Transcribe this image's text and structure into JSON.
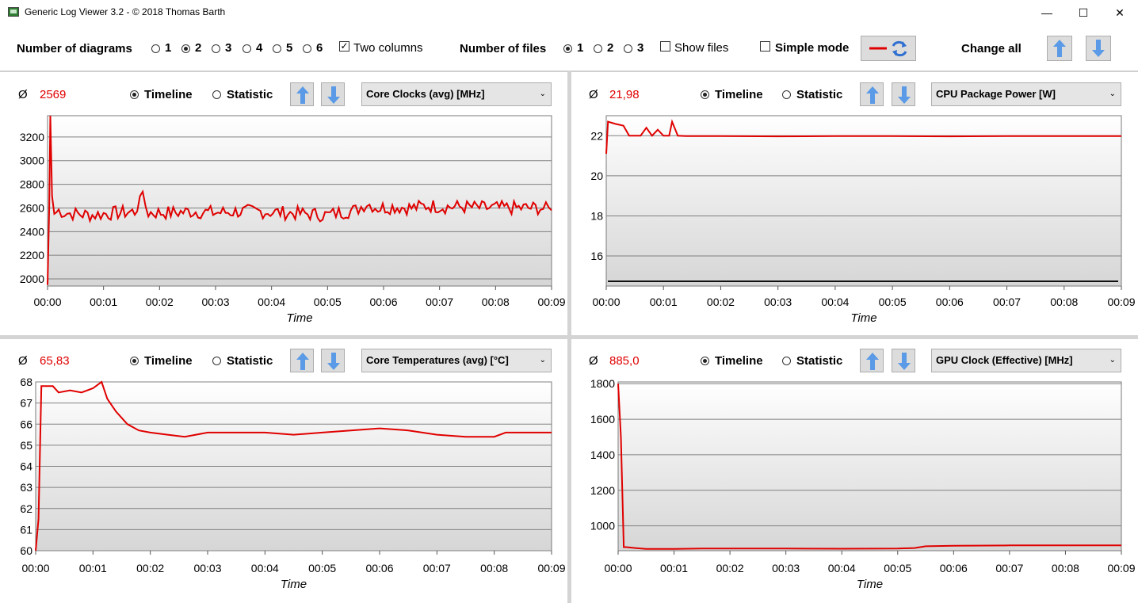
{
  "window": {
    "title": "Generic Log Viewer 3.2 - © 2018 Thomas Barth",
    "min": "—",
    "max": "☐",
    "close": "✕"
  },
  "toolbar": {
    "num_diagrams_label": "Number of diagrams",
    "diagram_options": [
      "1",
      "2",
      "3",
      "4",
      "5",
      "6"
    ],
    "diagram_selected": "2",
    "two_columns_label": "Two columns",
    "two_columns_checked": true,
    "num_files_label": "Number of files",
    "file_options": [
      "1",
      "2",
      "3"
    ],
    "file_selected": "1",
    "show_files_label": "Show files",
    "simple_mode_label": "Simple mode",
    "change_all_label": "Change all"
  },
  "panels": [
    {
      "avg_symbol": "Ø",
      "avg_value": "2569",
      "timeline_label": "Timeline",
      "statistic_label": "Statistic",
      "metric": "Core Clocks (avg) [MHz]"
    },
    {
      "avg_symbol": "Ø",
      "avg_value": "21,98",
      "timeline_label": "Timeline",
      "statistic_label": "Statistic",
      "metric": "CPU Package Power [W]"
    },
    {
      "avg_symbol": "Ø",
      "avg_value": "65,83",
      "timeline_label": "Timeline",
      "statistic_label": "Statistic",
      "metric": "Core Temperatures (avg) [°C]"
    },
    {
      "avg_symbol": "Ø",
      "avg_value": "885,0",
      "timeline_label": "Timeline",
      "statistic_label": "Statistic",
      "metric": "GPU Clock (Effective) [MHz]"
    }
  ],
  "colors": {
    "series": "#e00000",
    "accent": "#3c7fd6"
  },
  "chart_data": [
    {
      "type": "line",
      "xlabel": "Time",
      "x_ticks": [
        "00:00",
        "00:01",
        "00:02",
        "00:03",
        "00:04",
        "00:05",
        "00:06",
        "00:07",
        "00:08",
        "00:09"
      ],
      "xlim": [
        0,
        9
      ],
      "ylim": [
        1940,
        3380
      ],
      "y_ticks": [
        2000,
        2200,
        2400,
        2600,
        2800,
        3000,
        3200
      ],
      "grid": true,
      "series": [
        {
          "x": [
            0,
            0.03,
            0.05,
            0.08,
            0.12,
            0.2,
            0.3,
            0.5,
            0.8,
            1.0,
            1.3,
            1.6,
            1.65,
            1.8,
            2.2,
            2.6,
            3.0,
            3.4,
            3.8,
            4.2,
            4.6,
            5.0,
            5.2,
            5.5,
            5.7,
            5.9,
            6.2,
            6.5,
            6.8,
            7.1,
            7.4,
            7.8,
            8.2,
            8.5,
            8.8,
            9.0
          ],
          "y": [
            1950,
            2600,
            3380,
            2700,
            2550,
            2580,
            2560,
            2550,
            2540,
            2550,
            2560,
            2570,
            2740,
            2560,
            2560,
            2570,
            2560,
            2570,
            2570,
            2560,
            2550,
            2540,
            2560,
            2580,
            2640,
            2600,
            2610,
            2600,
            2620,
            2610,
            2610,
            2600,
            2600,
            2600,
            2600,
            2580
          ]
        }
      ]
    },
    {
      "type": "line",
      "xlabel": "Time",
      "x_ticks": [
        "00:00",
        "00:01",
        "00:02",
        "00:03",
        "00:04",
        "00:05",
        "00:06",
        "00:07",
        "00:08",
        "00:09"
      ],
      "xlim": [
        0,
        9
      ],
      "ylim": [
        14.5,
        23.0
      ],
      "y_ticks": [
        16,
        18,
        20,
        22
      ],
      "grid": true,
      "series": [
        {
          "x": [
            0,
            0.03,
            0.15,
            0.3,
            0.4,
            0.5,
            0.6,
            0.7,
            0.8,
            0.9,
            1.0,
            1.1,
            1.15,
            1.25,
            1.4,
            2,
            3,
            4,
            5,
            6,
            7,
            8,
            9
          ],
          "y": [
            21.1,
            22.7,
            22.6,
            22.5,
            22.0,
            22.0,
            22.0,
            22.4,
            22.0,
            22.3,
            22.0,
            22.0,
            22.7,
            22.0,
            21.98,
            21.98,
            21.97,
            21.98,
            21.98,
            21.97,
            21.98,
            21.98,
            21.98
          ]
        }
      ]
    },
    {
      "type": "line",
      "xlabel": "Time",
      "x_ticks": [
        "00:00",
        "00:01",
        "00:02",
        "00:03",
        "00:04",
        "00:05",
        "00:06",
        "00:07",
        "00:08",
        "00:09"
      ],
      "xlim": [
        0,
        9
      ],
      "ylim": [
        60,
        68
      ],
      "y_ticks": [
        60,
        61,
        62,
        63,
        64,
        65,
        66,
        67,
        68
      ],
      "grid": true,
      "series": [
        {
          "x": [
            0,
            0.05,
            0.1,
            0.15,
            0.3,
            0.4,
            0.6,
            0.8,
            1.0,
            1.15,
            1.25,
            1.4,
            1.6,
            1.8,
            2.0,
            2.3,
            2.6,
            3.0,
            3.5,
            4.0,
            4.5,
            5.0,
            5.5,
            6.0,
            6.5,
            7.0,
            7.5,
            8.0,
            8.2,
            9.0
          ],
          "y": [
            60,
            61.5,
            67.8,
            67.8,
            67.8,
            67.5,
            67.6,
            67.5,
            67.7,
            68.0,
            67.2,
            66.6,
            66.0,
            65.7,
            65.6,
            65.5,
            65.4,
            65.6,
            65.6,
            65.6,
            65.5,
            65.6,
            65.7,
            65.8,
            65.7,
            65.5,
            65.4,
            65.4,
            65.6,
            65.6
          ]
        }
      ]
    },
    {
      "type": "line",
      "xlabel": "Time",
      "x_ticks": [
        "00:00",
        "00:01",
        "00:02",
        "00:03",
        "00:04",
        "00:05",
        "00:06",
        "00:07",
        "00:08",
        "00:09"
      ],
      "xlim": [
        0,
        9
      ],
      "ylim": [
        860,
        1810
      ],
      "y_ticks": [
        1000,
        1200,
        1400,
        1600,
        1800
      ],
      "grid": true,
      "series": [
        {
          "x": [
            0,
            0.05,
            0.1,
            0.15,
            0.3,
            0.5,
            1.0,
            1.5,
            2.0,
            3.0,
            4.0,
            5.0,
            5.3,
            5.5,
            6.0,
            7.0,
            8.0,
            9.0
          ],
          "y": [
            1800,
            1500,
            880,
            880,
            875,
            870,
            870,
            872,
            872,
            872,
            871,
            872,
            875,
            885,
            888,
            890,
            890,
            890
          ]
        }
      ]
    }
  ]
}
